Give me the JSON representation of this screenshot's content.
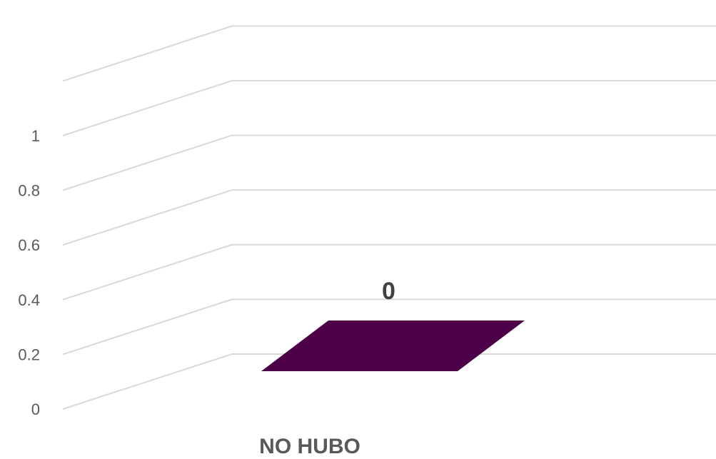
{
  "chart_data": {
    "type": "bar",
    "style": "3d-column",
    "categories": [
      "NO HUBO"
    ],
    "values": [
      0
    ],
    "data_labels": [
      "0"
    ],
    "yticks": [
      "0",
      "0.2",
      "0.4",
      "0.6",
      "0.8",
      "1"
    ],
    "ylim": [
      0,
      1
    ],
    "title": "",
    "xlabel": "",
    "ylabel": "",
    "grid": true,
    "legend": "none",
    "colors": {
      "bar": "#4d0047",
      "gridline": "#d9d9d9",
      "tick_text": "#595959",
      "data_label_text": "#404040"
    }
  }
}
